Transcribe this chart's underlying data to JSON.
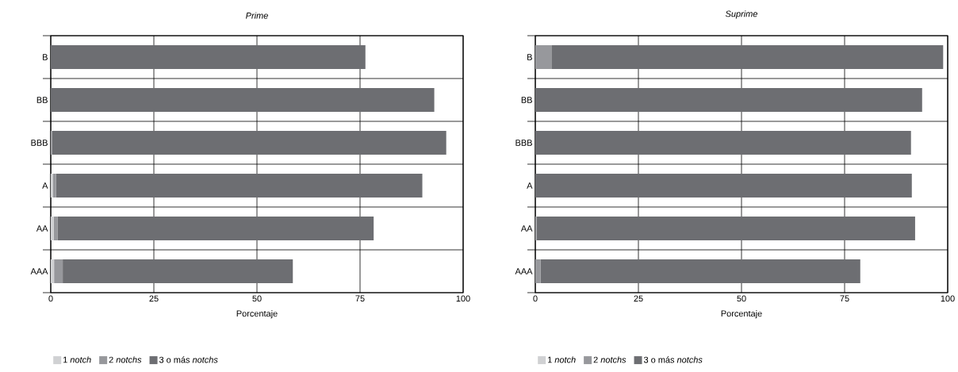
{
  "chart_data": [
    {
      "type": "bar",
      "title": "Prime",
      "xlabel": "Porcentaje",
      "orientation": "horizontal",
      "stacked": true,
      "grid": true,
      "legend": "bottom",
      "categories": [
        "B",
        "BB",
        "BBB",
        "A",
        "AA",
        "AAA"
      ],
      "xlim": [
        0,
        100
      ],
      "xticks": [
        0,
        25,
        50,
        75,
        100
      ],
      "series": [
        {
          "name": "1 *notch*",
          "color": "#d0d1d3",
          "values": [
            0,
            0,
            0,
            0.5,
            0.7,
            0.8
          ]
        },
        {
          "name": "2 *notchs*",
          "color": "#97989c",
          "values": [
            0,
            0,
            0.3,
            0.8,
            1.0,
            2.1
          ]
        },
        {
          "name": "3 o  más *notchs*",
          "color": "#6d6e72",
          "values": [
            76.3,
            93.0,
            95.6,
            88.8,
            76.6,
            55.8
          ]
        }
      ]
    },
    {
      "type": "bar",
      "title": "Suprime",
      "xlabel": "Porcentaje",
      "orientation": "horizontal",
      "stacked": true,
      "grid": true,
      "legend": "bottom",
      "categories": [
        "B",
        "BB",
        "BBB",
        "A",
        "AA",
        "AAA"
      ],
      "xlim": [
        0,
        100
      ],
      "xticks": [
        0,
        25,
        50,
        75,
        100
      ],
      "series": [
        {
          "name": "1 *notch*",
          "color": "#d0d1d3",
          "values": [
            0,
            0,
            0,
            0,
            0,
            null
          ]
        },
        {
          "name": "2 *notchs*",
          "color": "#97989c",
          "values": [
            3.9,
            0,
            0,
            0,
            0.3,
            1.3
          ]
        },
        {
          "name": "3 o  más *notchs*",
          "color": "#6d6e72",
          "values": [
            95.0,
            93.8,
            91.1,
            91.3,
            91.8,
            77.5
          ]
        }
      ]
    }
  ]
}
